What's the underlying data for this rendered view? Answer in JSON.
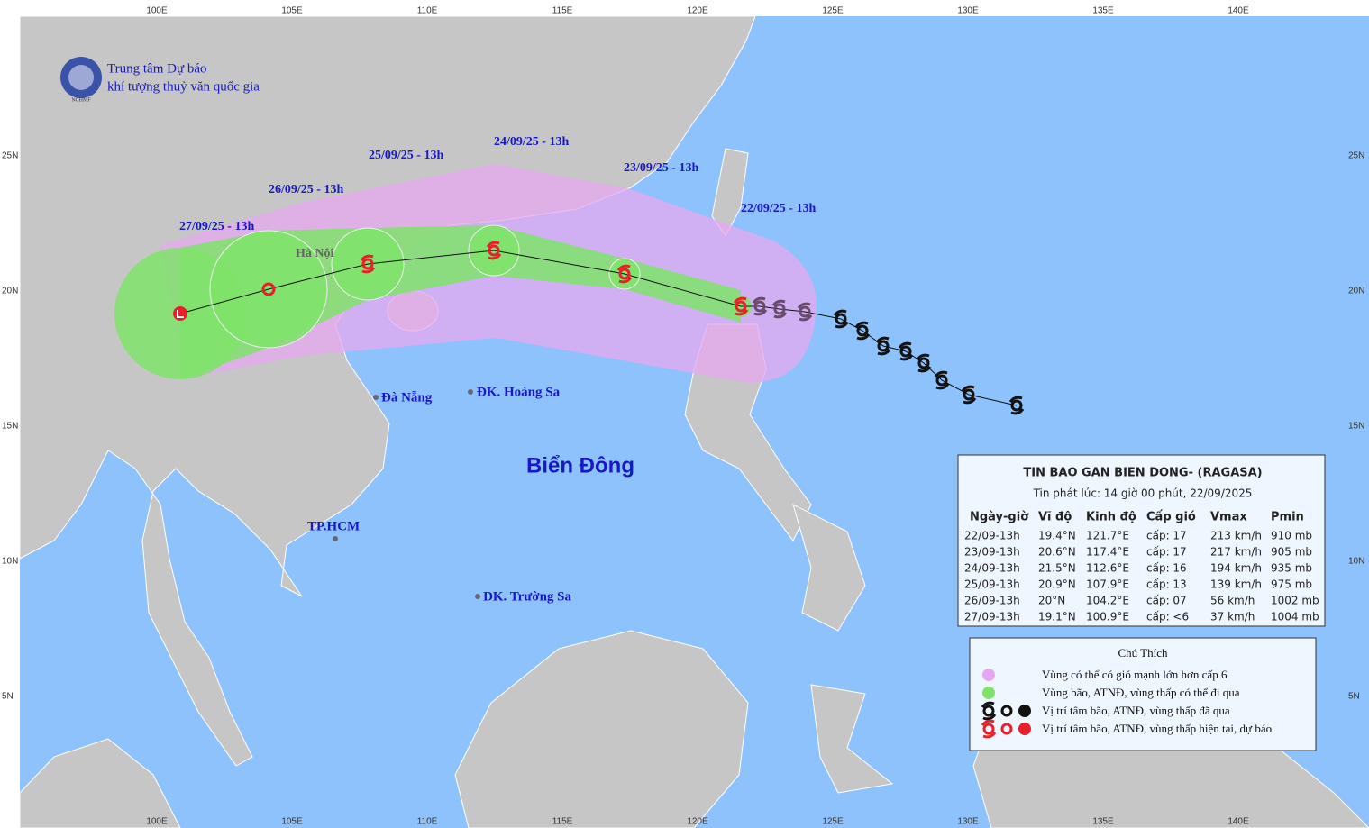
{
  "header": {
    "org_line1": "Trung tâm Dự báo",
    "org_line2": "khí tượng thuỷ văn quốc gia",
    "logo": "NCHMF"
  },
  "axes": {
    "lon": [
      "100E",
      "105E",
      "110E",
      "115E",
      "120E",
      "125E",
      "130E",
      "135E",
      "140E"
    ],
    "lat": [
      "25N",
      "20N",
      "15N",
      "10N",
      "5N"
    ]
  },
  "forecast_labels": [
    "22/09/25 - 13h",
    "23/09/25 - 13h",
    "24/09/25 - 13h",
    "25/09/25 - 13h",
    "26/09/25 - 13h",
    "27/09/25 - 13h"
  ],
  "places": {
    "ha_noi": "Hà Nội",
    "da_nang": "Đà Nẵng",
    "hoang_sa": "ĐK. Hoàng Sa",
    "bien_dong": "Biển Đông",
    "tp_hcm": "TP.HCM",
    "truong_sa": "ĐK. Trường Sa"
  },
  "info": {
    "title": "TIN BAO GAN BIEN DONG- (RAGASA)",
    "subtitle": "Tin phát lúc: 14 giờ 00 phút, 22/09/2025",
    "headers": [
      "Ngày-giờ",
      "Vĩ độ",
      "Kinh độ",
      "Cấp gió",
      "Vmax",
      "Pmin"
    ],
    "rows": [
      [
        "22/09-13h",
        "19.4°N",
        "121.7°E",
        "cấp: 17",
        "213 km/h",
        "910 mb"
      ],
      [
        "23/09-13h",
        "20.6°N",
        "117.4°E",
        "cấp: 17",
        "217 km/h",
        "905 mb"
      ],
      [
        "24/09-13h",
        "21.5°N",
        "112.6°E",
        "cấp: 16",
        "194 km/h",
        "935 mb"
      ],
      [
        "25/09-13h",
        "20.9°N",
        "107.9°E",
        "cấp: 13",
        "139 km/h",
        "975 mb"
      ],
      [
        "26/09-13h",
        "20°N",
        "104.2°E",
        "cấp: 07",
        "56 km/h",
        "1002 mb"
      ],
      [
        "27/09-13h",
        "19.1°N",
        "100.9°E",
        "cấp: <6",
        "37 km/h",
        "1004 mb"
      ]
    ]
  },
  "legend": {
    "title": "Chú Thích",
    "items": [
      "Vùng có thể có gió mạnh lớn hơn cấp 6",
      "Vùng bão, ATNĐ, vùng thấp có thể đi qua",
      "Vị trí tâm bão, ATNĐ, vùng thấp đã qua",
      "Vị trí tâm bão, ATNĐ, vùng thấp hiện tại, dự báo"
    ]
  }
}
